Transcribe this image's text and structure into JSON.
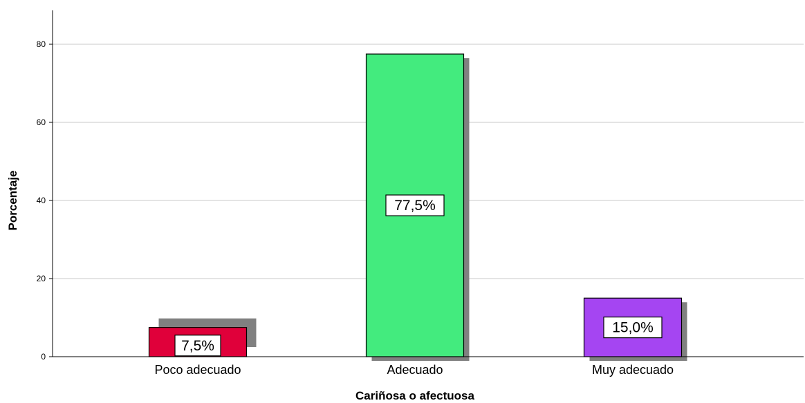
{
  "chart_data": {
    "type": "bar",
    "categories": [
      "Poco adecuado",
      "Adecuado",
      "Muy adecuado"
    ],
    "values": [
      7.5,
      77.5,
      15.0
    ],
    "data_labels": [
      "7,5%",
      "77,5%",
      "15,0%"
    ],
    "colors": [
      "#e0003a",
      "#43eb7e",
      "#a545f2"
    ],
    "shadow_color": "#808080",
    "title": "",
    "xlabel": "Cariñosa o afectuosa",
    "ylabel": "Porcentaje",
    "ylim": [
      0,
      80
    ],
    "yticks": [
      "0",
      "20",
      "40",
      "60",
      "80"
    ],
    "grid": true,
    "legend": "none"
  }
}
